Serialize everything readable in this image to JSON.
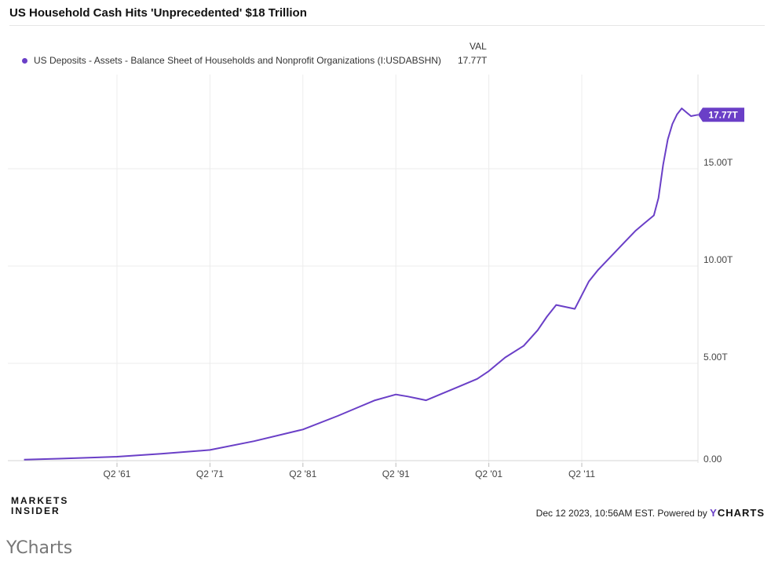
{
  "title": "US Household Cash Hits 'Unprecedented' $18 Trillion",
  "val_header": "VAL",
  "legend": {
    "series_name": "US Deposits - Assets - Balance Sheet of Households and Nonprofit Organizations (I:USDABSHN)",
    "value": "17.77T",
    "color": "#6a3fc7"
  },
  "chart_data": {
    "type": "line",
    "title": "US Household Cash Hits 'Unprecedented' $18 Trillion",
    "xlabel": "",
    "ylabel": "",
    "x_ticks": [
      "Q2 '61",
      "Q2 '71",
      "Q2 '81",
      "Q2 '91",
      "Q2 '01",
      "Q2 '11"
    ],
    "y_ticks": [
      "0.00",
      "5.00T",
      "10.00T",
      "15.00T"
    ],
    "ylim": [
      0,
      19
    ],
    "grid": true,
    "last_value_label": "17.77T",
    "series": [
      {
        "name": "US Deposits - Assets - Balance Sheet of Households and Nonprofit Organizations (I:USDABSHN)",
        "color": "#6a3fc7",
        "x": [
          1951.25,
          1955,
          1961.25,
          1966,
          1971.25,
          1976,
          1981.25,
          1985,
          1987,
          1989,
          1991.25,
          1992.5,
          1993.5,
          1994.5,
          1996,
          1998,
          2000,
          2001.25,
          2003,
          2005,
          2006.5,
          2007.5,
          2008.5,
          2009.5,
          2010.5,
          2011.25,
          2012,
          2013,
          2014,
          2015,
          2016,
          2017,
          2018,
          2019,
          2019.5,
          2020,
          2020.5,
          2021,
          2021.5,
          2022,
          2022.5,
          2023,
          2023.5,
          2023.75
        ],
        "values": [
          0.05,
          0.1,
          0.2,
          0.35,
          0.55,
          1.0,
          1.6,
          2.3,
          2.7,
          3.1,
          3.4,
          3.3,
          3.2,
          3.1,
          3.4,
          3.8,
          4.2,
          4.6,
          5.3,
          5.9,
          6.7,
          7.4,
          8.0,
          7.9,
          7.8,
          8.5,
          9.2,
          9.8,
          10.3,
          10.8,
          11.3,
          11.8,
          12.2,
          12.6,
          13.5,
          15.2,
          16.5,
          17.3,
          17.8,
          18.1,
          17.9,
          17.7,
          17.75,
          17.77
        ]
      }
    ]
  },
  "branding": {
    "publisher_line1": "MARKETS",
    "publisher_line2": "INSIDER",
    "footer_text": "Dec 12 2023, 10:56AM EST. Powered by",
    "footer_brand_y": "Y",
    "footer_brand_rest": "CHARTS"
  },
  "caption": "YCharts"
}
